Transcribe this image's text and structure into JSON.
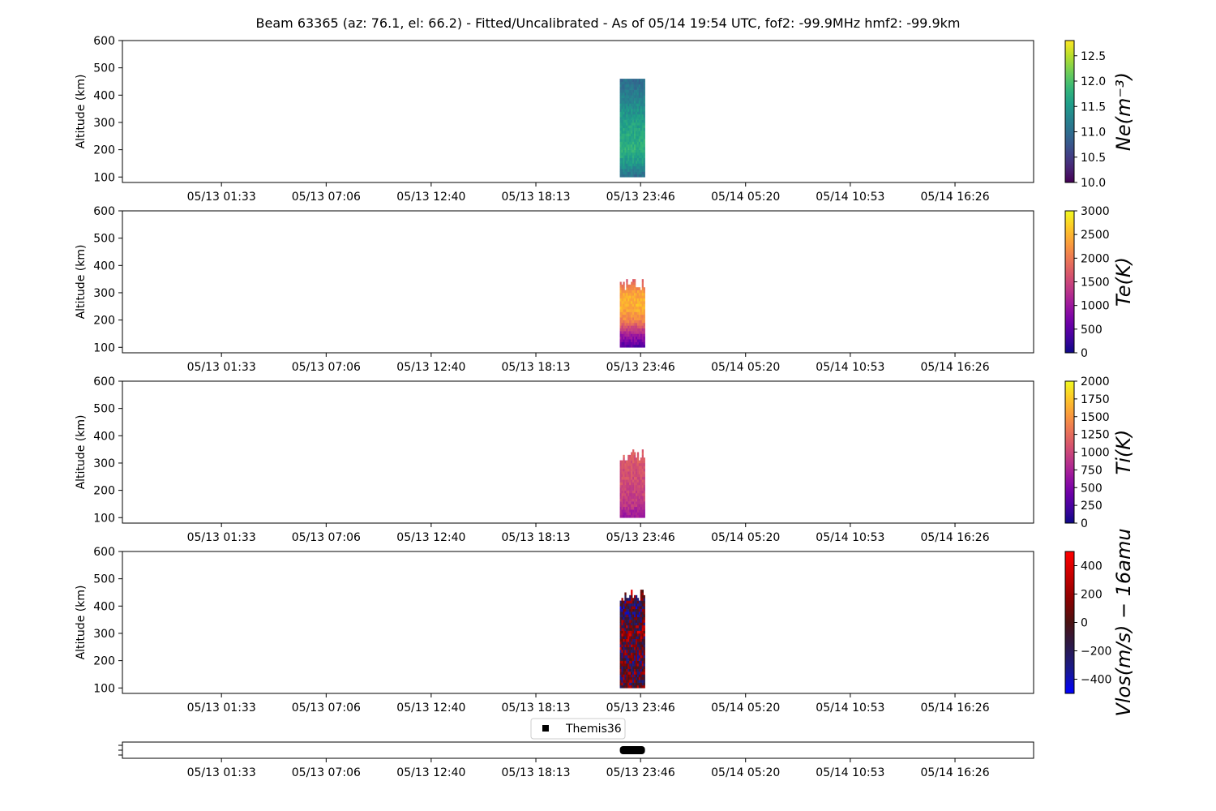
{
  "title": "Beam 63365 (az: 76.1, el: 66.2) - Fitted/Uncalibrated - As of 05/14 19:54 UTC, fof2: -99.9MHz  hmf2: -99.9km",
  "chart_data": {
    "type": "heatmap",
    "x_ticks": [
      "05/13 01:33",
      "05/13 07:06",
      "05/13 12:40",
      "05/13 18:13",
      "05/13 23:46",
      "05/14 05:20",
      "05/14 10:53",
      "05/14 16:26"
    ],
    "x_range": [
      "05/12 20:18",
      "05/14 20:36"
    ],
    "data_window": [
      "05/13 22:40",
      "05/14 00:00"
    ],
    "y_label": "Altitude (km)",
    "y_ticks": [
      100,
      200,
      300,
      400,
      500,
      600
    ],
    "ylim": [
      80,
      600
    ],
    "panels": [
      {
        "name": "ne",
        "cbar_label": "Ne(m⁻³)",
        "cmap": "viridis",
        "clim": [
          10.0,
          12.8
        ],
        "cbar_ticks": [
          "10.0",
          "10.5",
          "11.0",
          "11.5",
          "12.0",
          "12.5"
        ],
        "profile": {
          "alt": [
            100,
            150,
            200,
            250,
            300,
            350,
            400,
            450
          ],
          "value": [
            11.0,
            11.5,
            11.8,
            11.7,
            11.6,
            11.4,
            11.2,
            11.0
          ]
        },
        "top_alt": 455
      },
      {
        "name": "te",
        "cbar_label": "Te(K)",
        "cmap": "plasma",
        "clim": [
          0,
          3000
        ],
        "cbar_ticks": [
          "0",
          "500",
          "1000",
          "1500",
          "2000",
          "2500",
          "3000"
        ],
        "profile": {
          "alt": [
            100,
            150,
            200,
            250,
            300,
            340
          ],
          "value": [
            400,
            1100,
            2100,
            2500,
            2400,
            1700
          ]
        },
        "top_alt": 345
      },
      {
        "name": "ti",
        "cbar_label": "Ti(K)",
        "cmap": "plasma",
        "clim": [
          0,
          2000
        ],
        "cbar_ticks": [
          "0",
          "250",
          "500",
          "750",
          "1000",
          "1250",
          "1500",
          "1750",
          "2000"
        ],
        "profile": {
          "alt": [
            100,
            150,
            200,
            250,
            300,
            340
          ],
          "value": [
            650,
            900,
            1000,
            1050,
            1100,
            1200
          ]
        },
        "top_alt": 345
      },
      {
        "name": "vlos",
        "cbar_label": "Vlos(m/s) − 16amu",
        "cmap": "bwr",
        "clim": [
          -500,
          500
        ],
        "cbar_ticks": [
          "−400",
          "−200",
          "0",
          "200",
          "400"
        ],
        "profile": {
          "alt": [
            100,
            200,
            300,
            400,
            450
          ],
          "value": [
            0,
            -50,
            80,
            -150,
            100
          ]
        },
        "top_alt": 455
      }
    ],
    "legend": {
      "entries": [
        "Themis36"
      ],
      "placement": "top-center"
    },
    "coverage": {
      "name": "Themis36",
      "start": "05/13 22:40",
      "end": "05/14 00:00"
    }
  }
}
